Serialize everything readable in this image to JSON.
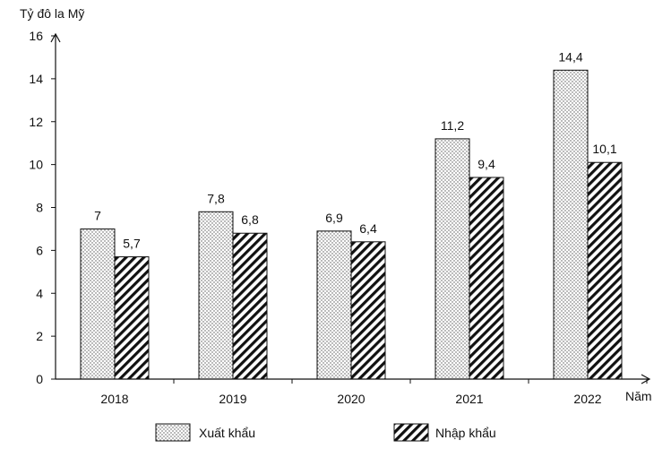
{
  "chart_data": {
    "type": "bar",
    "ylabel": "Tỷ đô la Mỹ",
    "xlabel": "Năm",
    "categories": [
      "2018",
      "2019",
      "2020",
      "2021",
      "2022"
    ],
    "series": [
      {
        "name": "Xuất khẩu",
        "values": [
          7,
          7.8,
          6.9,
          11.2,
          14.4
        ],
        "pattern": "dots",
        "value_labels": [
          "7",
          "7,8",
          "6,9",
          "11,2",
          "14,4"
        ]
      },
      {
        "name": "Nhập khẩu",
        "values": [
          5.7,
          6.8,
          6.4,
          9.4,
          10.1
        ],
        "pattern": "hatch",
        "value_labels": [
          "5,7",
          "6,8",
          "6,4",
          "9,4",
          "10,1"
        ]
      }
    ],
    "ylim": [
      0,
      16
    ],
    "yticks": [
      0,
      2,
      4,
      6,
      8,
      10,
      12,
      14,
      16
    ],
    "grid": false,
    "legend_position": "bottom"
  }
}
